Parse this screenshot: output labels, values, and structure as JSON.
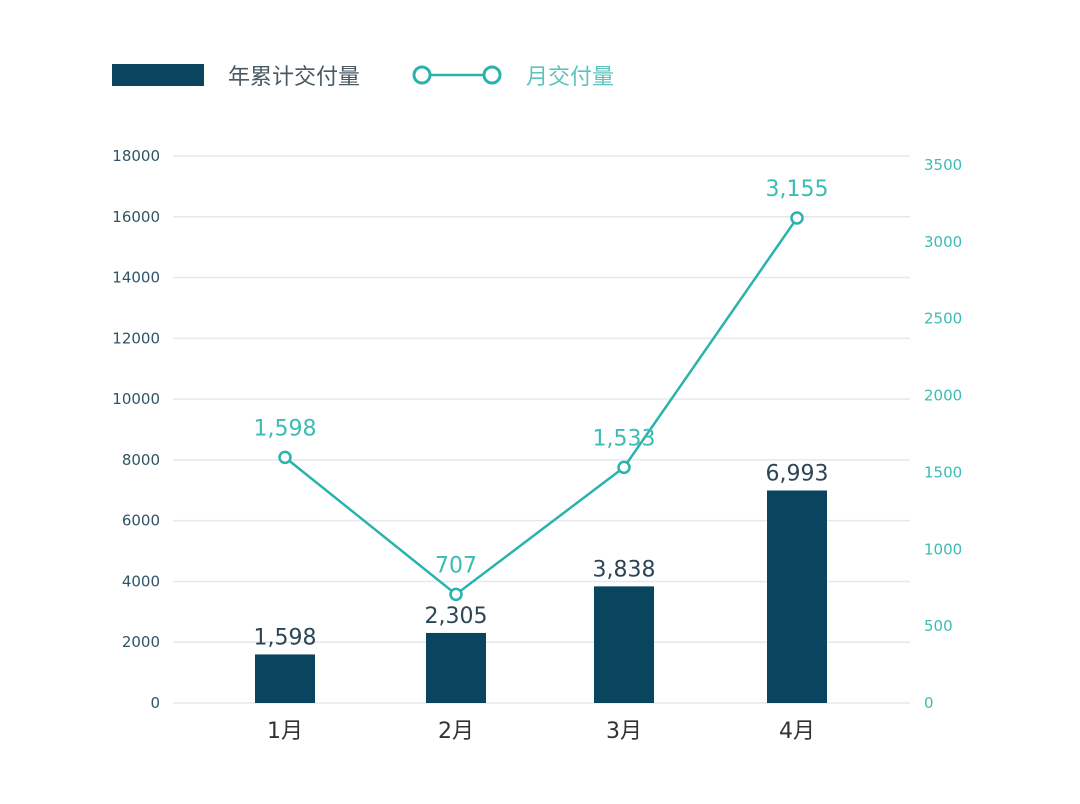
{
  "chart_data": {
    "type": "bar+line",
    "categories": [
      "1月",
      "2月",
      "3月",
      "4月"
    ],
    "series": [
      {
        "name": "年累计交付量",
        "type": "bar",
        "axis": "left",
        "values": [
          1598,
          2305,
          3838,
          6993
        ],
        "labels": [
          "1,598",
          "2,305",
          "3,838",
          "6,993"
        ],
        "color": "#0a4560"
      },
      {
        "name": "月交付量",
        "type": "line",
        "axis": "right",
        "values": [
          1598,
          707,
          1533,
          3155
        ],
        "labels": [
          "1,598",
          "707",
          "1,533",
          "3,155"
        ],
        "color": "#2ab3ad"
      }
    ],
    "left_axis": {
      "range": [
        0,
        18000
      ],
      "ticks": [
        "0",
        "2000",
        "4000",
        "6000",
        "8000",
        "10000",
        "12000",
        "14000",
        "16000",
        "18000"
      ]
    },
    "right_axis": {
      "range": [
        0,
        3500
      ],
      "ticks": [
        "0",
        "500",
        "1000",
        "1500",
        "2000",
        "2500",
        "3000",
        "3500"
      ]
    },
    "grid": true,
    "legend": "top-left"
  }
}
